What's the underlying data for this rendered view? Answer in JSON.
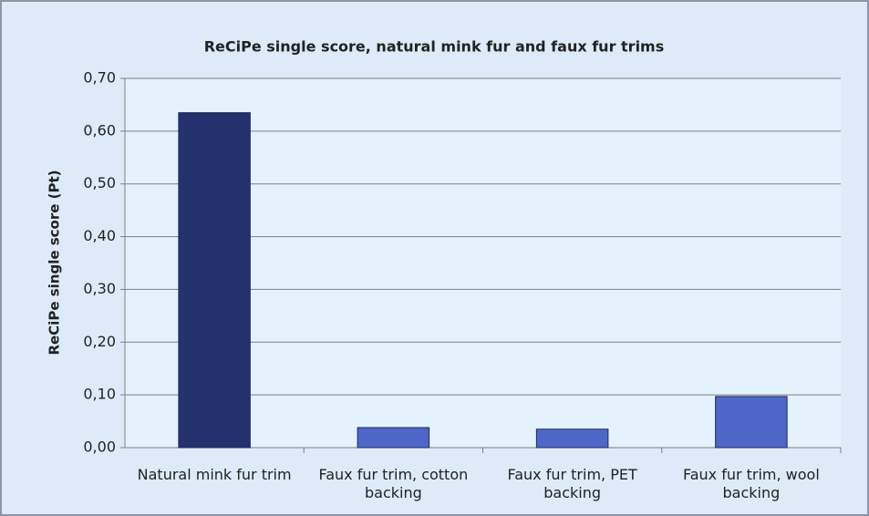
{
  "chart_data": {
    "type": "bar",
    "title": "ReCiPe single score, natural mink fur and faux fur trims",
    "y_label": "ReCiPe single score (Pt)",
    "categories": [
      "Natural mink fur trim",
      "Faux fur trim, cotton backing",
      "Faux fur trim, PET backing",
      "Faux fur trim, wool backing"
    ],
    "values": [
      0.635,
      0.038,
      0.035,
      0.097
    ],
    "colors": [
      "#24336f",
      "#4f66c9",
      "#4f66c9",
      "#4f66c9"
    ],
    "ylim": [
      0,
      0.7
    ],
    "yticks": [
      {
        "value": 0,
        "label": "0,00"
      },
      {
        "value": 0.1,
        "label": "0,10"
      },
      {
        "value": 0.2,
        "label": "0,20"
      },
      {
        "value": 0.3,
        "label": "0,30"
      },
      {
        "value": 0.4,
        "label": "0,40"
      },
      {
        "value": 0.5,
        "label": "0,50"
      },
      {
        "value": 0.6,
        "label": "0,60"
      },
      {
        "value": 0.7,
        "label": "0,70"
      }
    ],
    "grid": true
  }
}
